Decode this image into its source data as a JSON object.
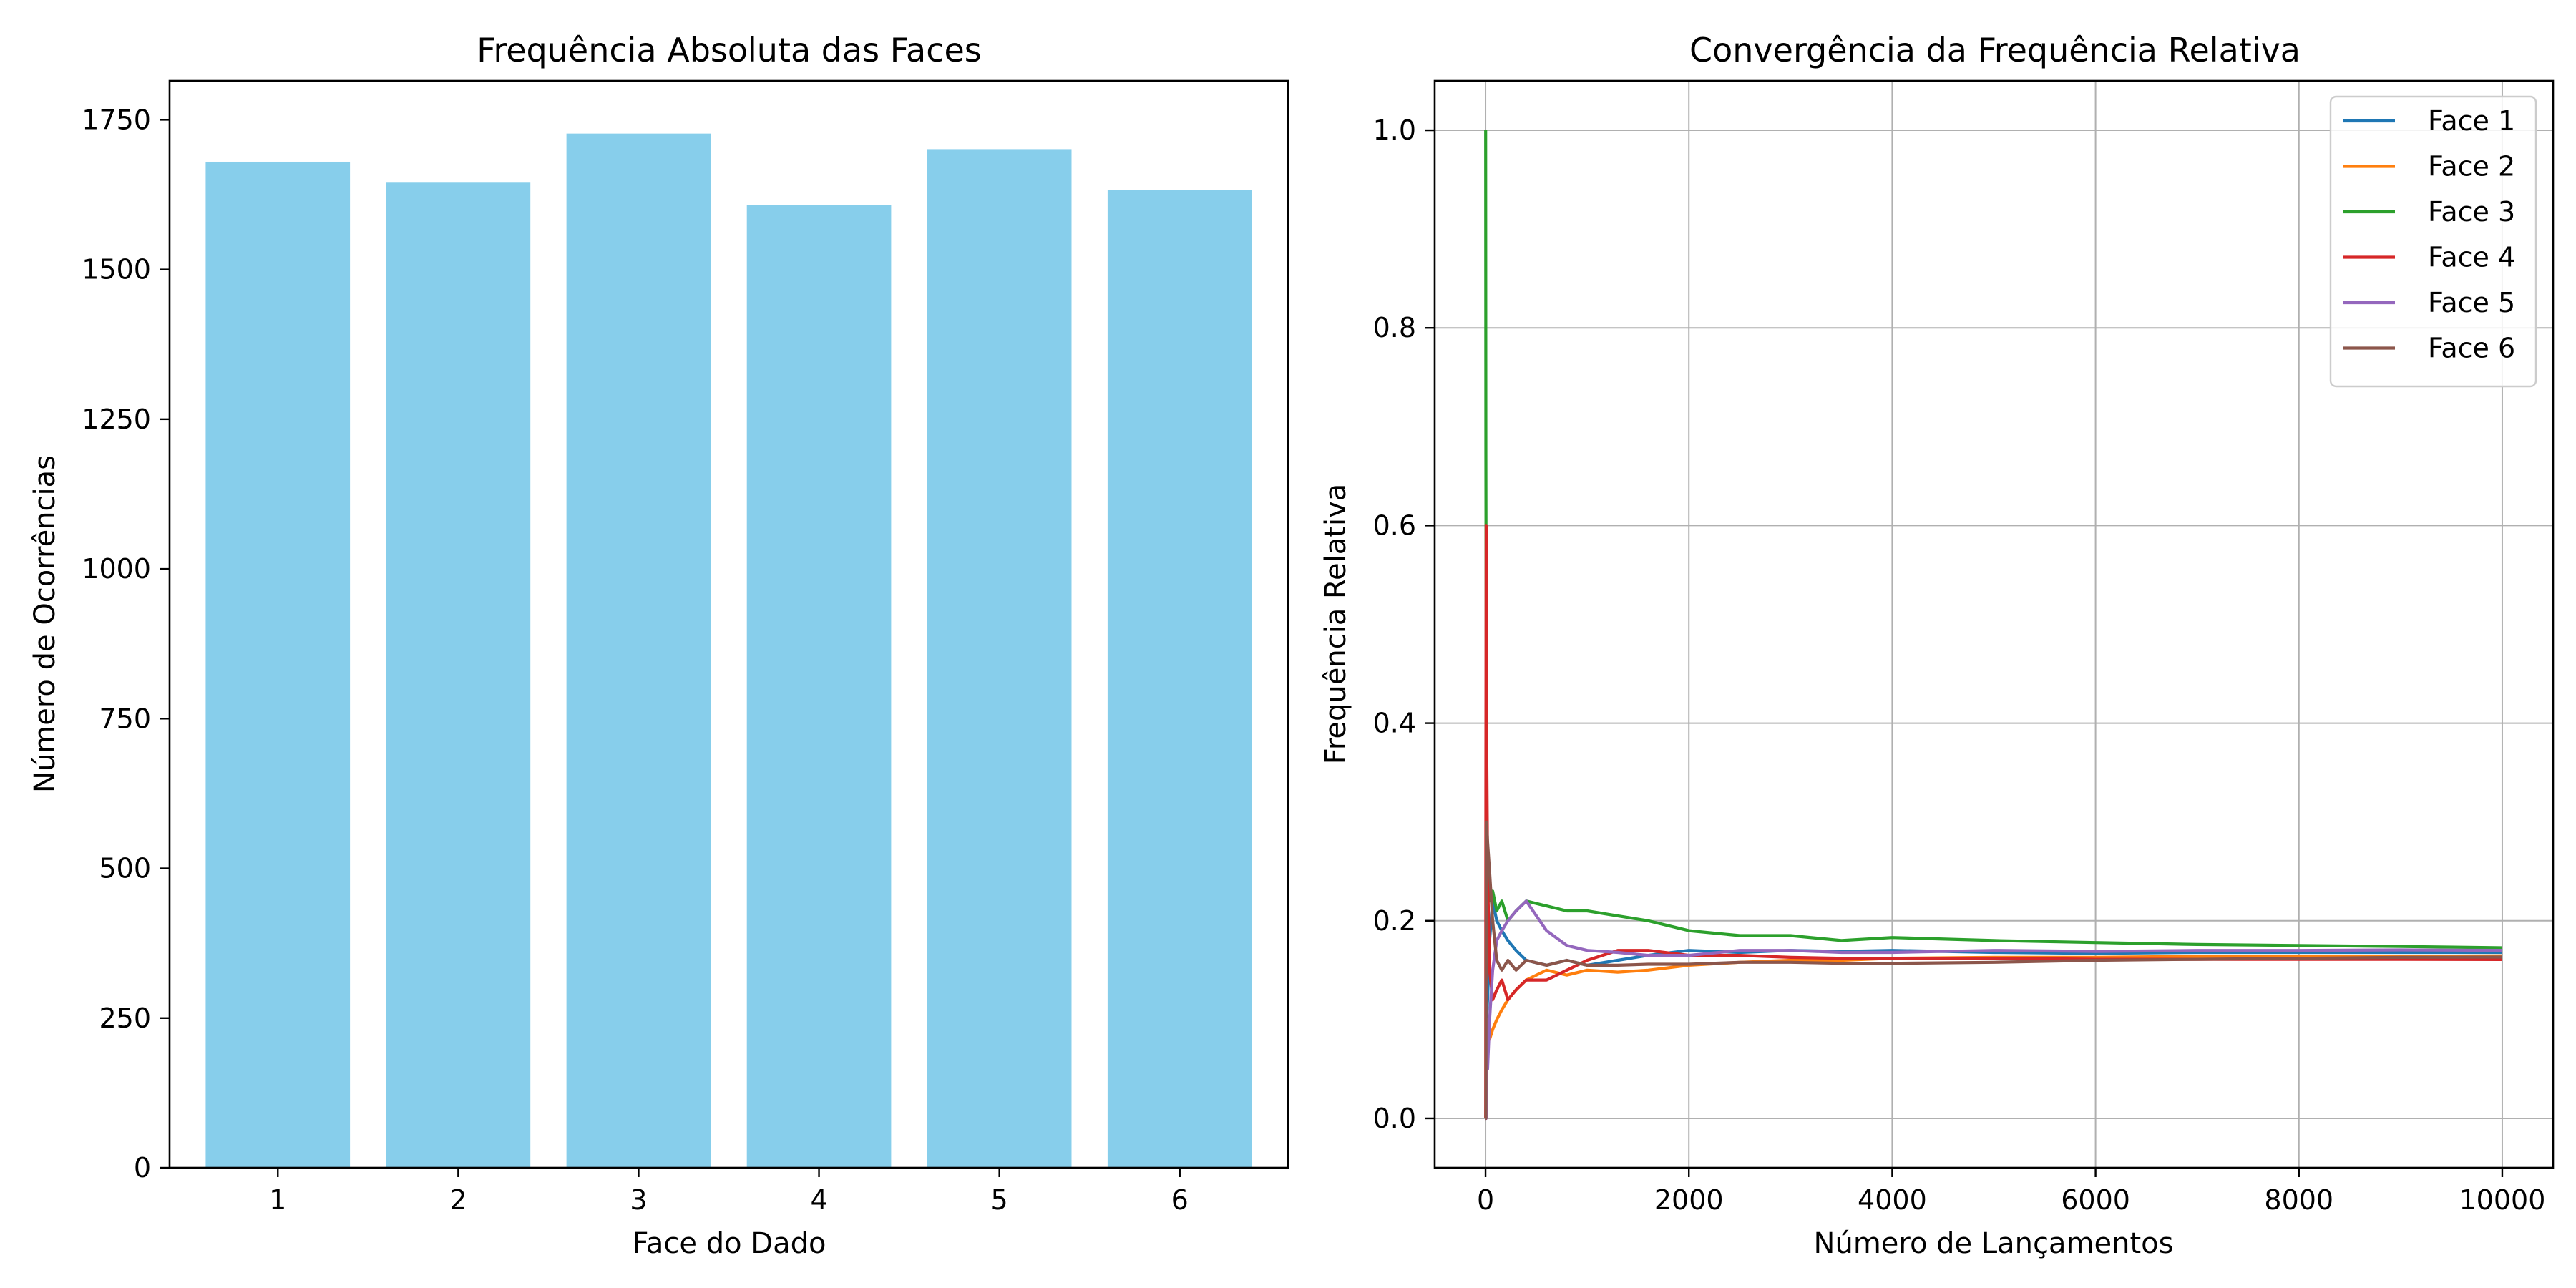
{
  "chart_data": [
    {
      "type": "bar",
      "title": "Frequência Absoluta das Faces",
      "xlabel": "Face do Dado",
      "ylabel": "Número de Ocorrências",
      "categories": [
        "1",
        "2",
        "3",
        "4",
        "5",
        "6"
      ],
      "values": [
        1680,
        1645,
        1727,
        1608,
        1701,
        1633
      ],
      "ylim": [
        0,
        1815
      ],
      "yticks": [
        0,
        250,
        500,
        750,
        1000,
        1250,
        1500,
        1750
      ],
      "bar_color": "#87ceeb",
      "grid": false
    },
    {
      "type": "line",
      "title": "Convergência da Frequência Relativa",
      "xlabel": "Número de Lançamentos",
      "ylabel": "Frequência Relativa",
      "xlim": [
        -500,
        10500
      ],
      "ylim": [
        -0.05,
        1.05
      ],
      "xticks": [
        0,
        2000,
        4000,
        6000,
        8000,
        10000
      ],
      "yticks": [
        0.0,
        0.2,
        0.4,
        0.6,
        0.8,
        1.0
      ],
      "ytick_labels": [
        "0.0",
        "0.2",
        "0.4",
        "0.6",
        "0.8",
        "1.0"
      ],
      "grid": true,
      "legend_position": "top-right",
      "series": [
        {
          "name": "Face 1",
          "color": "#1f77b4",
          "x": [
            1,
            3,
            6,
            10,
            20,
            40,
            70,
            110,
            160,
            220,
            300,
            400,
            600,
            800,
            1000,
            1300,
            1600,
            2000,
            2500,
            3000,
            3500,
            4000,
            5000,
            6000,
            7000,
            8000,
            9000,
            10000
          ],
          "y": [
            0.0,
            0.0,
            0.05,
            0.1,
            0.12,
            0.18,
            0.22,
            0.2,
            0.19,
            0.18,
            0.17,
            0.16,
            0.155,
            0.16,
            0.155,
            0.16,
            0.165,
            0.17,
            0.168,
            0.17,
            0.169,
            0.17,
            0.168,
            0.167,
            0.168,
            0.168,
            0.168,
            0.168
          ]
        },
        {
          "name": "Face 2",
          "color": "#ff7f0e",
          "x": [
            1,
            3,
            6,
            10,
            20,
            40,
            70,
            110,
            160,
            220,
            300,
            400,
            600,
            800,
            1000,
            1300,
            1600,
            2000,
            2500,
            3000,
            3500,
            4000,
            5000,
            6000,
            7000,
            8000,
            9000,
            10000
          ],
          "y": [
            0.0,
            0.0,
            0.05,
            0.1,
            0.1,
            0.08,
            0.09,
            0.1,
            0.11,
            0.12,
            0.13,
            0.14,
            0.15,
            0.145,
            0.15,
            0.148,
            0.15,
            0.155,
            0.158,
            0.16,
            0.16,
            0.162,
            0.163,
            0.163,
            0.164,
            0.164,
            0.164,
            0.1645
          ]
        },
        {
          "name": "Face 3",
          "color": "#2ca02c",
          "x": [
            1,
            3,
            6,
            10,
            20,
            40,
            70,
            110,
            160,
            220,
            300,
            400,
            600,
            800,
            1000,
            1300,
            1600,
            2000,
            2500,
            3000,
            3500,
            4000,
            5000,
            6000,
            7000,
            8000,
            9000,
            10000
          ],
          "y": [
            1.0,
            0.67,
            0.5,
            0.3,
            0.25,
            0.22,
            0.23,
            0.21,
            0.22,
            0.2,
            0.21,
            0.22,
            0.215,
            0.21,
            0.21,
            0.205,
            0.2,
            0.19,
            0.185,
            0.185,
            0.18,
            0.183,
            0.18,
            0.178,
            0.176,
            0.175,
            0.174,
            0.1727
          ]
        },
        {
          "name": "Face 4",
          "color": "#d62728",
          "x": [
            1,
            3,
            6,
            10,
            20,
            40,
            70,
            110,
            160,
            220,
            300,
            400,
            600,
            800,
            1000,
            1300,
            1600,
            2000,
            2500,
            3000,
            3500,
            4000,
            5000,
            6000,
            7000,
            8000,
            9000,
            10000
          ],
          "y": [
            0.0,
            0.33,
            0.6,
            0.4,
            0.25,
            0.15,
            0.12,
            0.13,
            0.14,
            0.12,
            0.13,
            0.14,
            0.14,
            0.15,
            0.16,
            0.17,
            0.17,
            0.165,
            0.165,
            0.163,
            0.162,
            0.162,
            0.162,
            0.161,
            0.161,
            0.161,
            0.161,
            0.1608
          ]
        },
        {
          "name": "Face 5",
          "color": "#9467bd",
          "x": [
            1,
            3,
            6,
            10,
            20,
            40,
            70,
            110,
            160,
            220,
            300,
            400,
            600,
            800,
            1000,
            1300,
            1600,
            2000,
            2500,
            3000,
            3500,
            4000,
            5000,
            6000,
            7000,
            8000,
            9000,
            10000
          ],
          "y": [
            0.0,
            0.0,
            0.0,
            0.1,
            0.05,
            0.1,
            0.15,
            0.18,
            0.19,
            0.2,
            0.21,
            0.22,
            0.19,
            0.175,
            0.17,
            0.168,
            0.165,
            0.165,
            0.17,
            0.17,
            0.168,
            0.168,
            0.17,
            0.169,
            0.17,
            0.17,
            0.1705,
            0.1701
          ]
        },
        {
          "name": "Face 6",
          "color": "#8c564b",
          "x": [
            1,
            3,
            6,
            10,
            20,
            40,
            70,
            110,
            160,
            220,
            300,
            400,
            600,
            800,
            1000,
            1300,
            1600,
            2000,
            2500,
            3000,
            3500,
            4000,
            5000,
            6000,
            7000,
            8000,
            9000,
            10000
          ],
          "y": [
            0.0,
            0.0,
            0.17,
            0.3,
            0.28,
            0.25,
            0.2,
            0.16,
            0.15,
            0.16,
            0.15,
            0.16,
            0.155,
            0.16,
            0.155,
            0.155,
            0.156,
            0.156,
            0.158,
            0.158,
            0.157,
            0.157,
            0.158,
            0.16,
            0.161,
            0.162,
            0.163,
            0.1633
          ]
        }
      ]
    }
  ]
}
